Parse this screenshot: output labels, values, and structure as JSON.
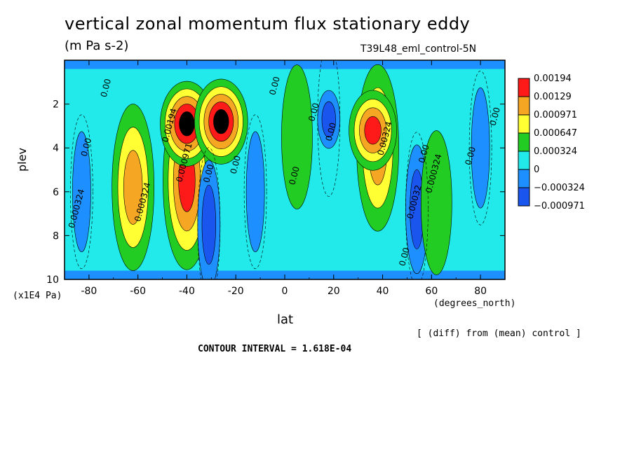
{
  "chart_data": {
    "type": "heatmap",
    "title": "vertical zonal momentum flux stationary eddy",
    "units": "(m Pa s-2)",
    "dataset": "T39L48_eml_control-5N",
    "xlabel": "lat",
    "xunit": "(degrees_north)",
    "ylabel": "plev",
    "yunit": "(x1E4 Pa)",
    "note": "[ (diff) from (mean) control ]",
    "contour_interval": "CONTOUR INTERVAL = 1.618E-04",
    "xlim": [
      -90,
      90
    ],
    "ylim": [
      10,
      0
    ],
    "xticks": [
      "-80",
      "-60",
      "-40",
      "-20",
      "0",
      "20",
      "40",
      "60",
      "80"
    ],
    "xtick_values": [
      -80,
      -60,
      -40,
      -20,
      0,
      20,
      40,
      60,
      80
    ],
    "yticks": [
      "2",
      "4",
      "6",
      "8",
      "10"
    ],
    "ytick_values": [
      2,
      4,
      6,
      8,
      10
    ],
    "legend": {
      "position": "right",
      "levels": [
        "0.00194",
        "0.00129",
        "0.000971",
        "0.000647",
        "0.000324",
        "0",
        "−0.000324",
        "−0.000971"
      ],
      "colors": [
        "#ff1a1a",
        "#f5a623",
        "#ffff33",
        "#22cc22",
        "#22eaea",
        "#1e8fff",
        "#1a55ee"
      ]
    },
    "levels_order": [
      "#1a55ee",
      "#1e8fff",
      "#22eaea",
      "#22cc22",
      "#ffff33",
      "#f5a623",
      "#ff1a1a"
    ],
    "features": [
      {
        "lat": -83,
        "plev": 6.0,
        "value": -0.000324
      },
      {
        "lat": -62,
        "plev": 5.8,
        "value": 0.000971
      },
      {
        "lat": -40,
        "plev": 5.5,
        "value": 0.00129
      },
      {
        "lat": -40,
        "plev": 2.9,
        "value": 0.00194
      },
      {
        "lat": -26,
        "plev": 2.8,
        "value": 0.00194
      },
      {
        "lat": -31,
        "plev": 7.5,
        "value": -0.000971
      },
      {
        "lat": -12,
        "plev": 6.0,
        "value": -0.000324
      },
      {
        "lat": 5,
        "plev": 3.5,
        "value": 0.000324
      },
      {
        "lat": 18,
        "plev": 2.7,
        "value": -0.000971
      },
      {
        "lat": 38,
        "plev": 4.0,
        "value": 0.000971
      },
      {
        "lat": 36,
        "plev": 3.2,
        "value": 0.00129
      },
      {
        "lat": 54,
        "plev": 6.8,
        "value": -0.000971
      },
      {
        "lat": 62,
        "plev": 6.5,
        "value": 0.000324
      },
      {
        "lat": 80,
        "plev": 4.0,
        "value": -0.000324
      }
    ],
    "contour_labels": [
      {
        "text": "0.00",
        "lat": -72,
        "plev": 1.3
      },
      {
        "text": "0.00",
        "lat": -80,
        "plev": 4.0
      },
      {
        "text": "0.000324",
        "lat": -84,
        "plev": 6.8
      },
      {
        "text": "0.000324",
        "lat": -57,
        "plev": 6.5
      },
      {
        "text": "0.00194",
        "lat": -46,
        "plev": 3.0
      },
      {
        "text": "0.000971",
        "lat": -40,
        "plev": 4.7
      },
      {
        "text": "0.00",
        "lat": -30,
        "plev": 5.2
      },
      {
        "text": "0.00",
        "lat": -19,
        "plev": 4.8
      },
      {
        "text": "0.00",
        "lat": -3,
        "plev": 1.2
      },
      {
        "text": "0.00",
        "lat": 13,
        "plev": 2.4
      },
      {
        "text": "0.00",
        "lat": 20,
        "plev": 3.3
      },
      {
        "text": "0.00324",
        "lat": 42,
        "plev": 3.6
      },
      {
        "text": "0.00",
        "lat": 58,
        "plev": 4.3
      },
      {
        "text": "0.000324",
        "lat": 62,
        "plev": 5.2
      },
      {
        "text": "0.00",
        "lat": 77,
        "plev": 4.4
      },
      {
        "text": "0.00",
        "lat": 87,
        "plev": 2.6
      },
      {
        "text": "0.00",
        "lat": 5,
        "plev": 5.3
      },
      {
        "text": "0.00",
        "lat": 50,
        "plev": 9.0
      },
      {
        "text": "0.00032",
        "lat": 54,
        "plev": 6.5
      }
    ]
  }
}
